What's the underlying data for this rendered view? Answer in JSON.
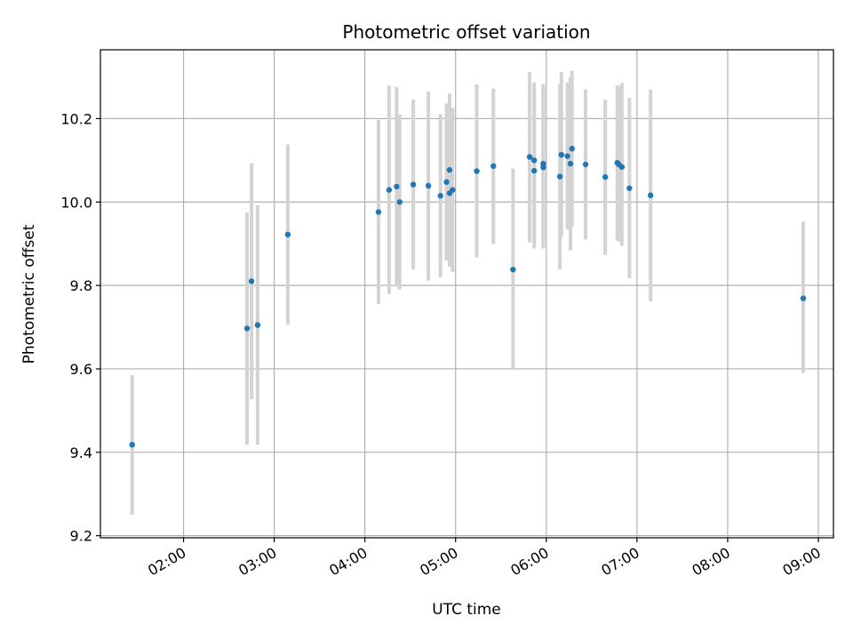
{
  "chart_data": {
    "type": "scatter",
    "title": "Photometric offset variation",
    "xlabel": "UTC time",
    "ylabel": "Photometric offset",
    "x_unit": "UTC time (HH:MM)",
    "xlim": [
      "01:05",
      "09:10"
    ],
    "ylim": [
      9.195,
      10.365
    ],
    "x_ticks": [
      "02:00",
      "03:00",
      "04:00",
      "05:00",
      "06:00",
      "07:00",
      "08:00",
      "09:00"
    ],
    "y_ticks": [
      "9.2",
      "9.4",
      "9.6",
      "9.8",
      "10.0",
      "10.2"
    ],
    "grid": true,
    "point_color": "#1f77b4",
    "errorbar_color": "#d3d3d3",
    "series": [
      {
        "points": [
          {
            "x": "01:26",
            "y": 9.418,
            "lo": 9.25,
            "hi": 9.585
          },
          {
            "x": "02:42",
            "y": 9.697,
            "lo": 9.418,
            "hi": 9.975
          },
          {
            "x": "02:45",
            "y": 9.81,
            "lo": 9.527,
            "hi": 10.093
          },
          {
            "x": "02:49",
            "y": 9.705,
            "lo": 9.418,
            "hi": 9.992
          },
          {
            "x": "03:09",
            "y": 9.922,
            "lo": 9.706,
            "hi": 10.138
          },
          {
            "x": "04:09",
            "y": 9.976,
            "lo": 9.756,
            "hi": 10.197
          },
          {
            "x": "04:16",
            "y": 10.029,
            "lo": 9.779,
            "hi": 10.279
          },
          {
            "x": "04:21",
            "y": 10.037,
            "lo": 9.797,
            "hi": 10.276
          },
          {
            "x": "04:23",
            "y": 10.0,
            "lo": 9.79,
            "hi": 10.21
          },
          {
            "x": "04:32",
            "y": 10.042,
            "lo": 9.838,
            "hi": 10.246
          },
          {
            "x": "04:42",
            "y": 10.039,
            "lo": 9.812,
            "hi": 10.265
          },
          {
            "x": "04:50",
            "y": 10.015,
            "lo": 9.82,
            "hi": 10.211
          },
          {
            "x": "04:54",
            "y": 10.048,
            "lo": 9.86,
            "hi": 10.236
          },
          {
            "x": "04:56",
            "y": 10.077,
            "lo": 9.86,
            "hi": 10.26
          },
          {
            "x": "04:56",
            "y": 10.021,
            "lo": 9.845,
            "hi": 10.197
          },
          {
            "x": "04:58",
            "y": 10.029,
            "lo": 9.832,
            "hi": 10.226
          },
          {
            "x": "05:14",
            "y": 10.074,
            "lo": 9.867,
            "hi": 10.282
          },
          {
            "x": "05:25",
            "y": 10.086,
            "lo": 9.9,
            "hi": 10.272
          },
          {
            "x": "05:38",
            "y": 9.838,
            "lo": 9.597,
            "hi": 10.08
          },
          {
            "x": "05:49",
            "y": 10.108,
            "lo": 9.903,
            "hi": 10.312
          },
          {
            "x": "05:52",
            "y": 10.1,
            "lo": 9.889,
            "hi": 10.287
          },
          {
            "x": "05:52",
            "y": 10.075,
            "lo": 9.889,
            "hi": 10.264
          },
          {
            "x": "05:58",
            "y": 10.092,
            "lo": 9.893,
            "hi": 10.283
          },
          {
            "x": "05:58",
            "y": 10.083,
            "lo": 9.889,
            "hi": 10.279
          },
          {
            "x": "06:09",
            "y": 10.061,
            "lo": 9.838,
            "hi": 10.283
          },
          {
            "x": "06:10",
            "y": 10.113,
            "lo": 9.917,
            "hi": 10.312
          },
          {
            "x": "06:14",
            "y": 10.11,
            "lo": 9.934,
            "hi": 10.287
          },
          {
            "x": "06:16",
            "y": 10.092,
            "lo": 9.884,
            "hi": 10.3
          },
          {
            "x": "06:17",
            "y": 10.128,
            "lo": 9.94,
            "hi": 10.315
          },
          {
            "x": "06:26",
            "y": 10.09,
            "lo": 9.91,
            "hi": 10.27
          },
          {
            "x": "06:39",
            "y": 10.06,
            "lo": 9.873,
            "hi": 10.245
          },
          {
            "x": "06:47",
            "y": 10.094,
            "lo": 9.908,
            "hi": 10.28
          },
          {
            "x": "06:48",
            "y": 10.09,
            "lo": 9.905,
            "hi": 10.276
          },
          {
            "x": "06:50",
            "y": 10.084,
            "lo": 9.895,
            "hi": 10.285
          },
          {
            "x": "06:55",
            "y": 10.033,
            "lo": 9.817,
            "hi": 10.25
          },
          {
            "x": "07:09",
            "y": 10.016,
            "lo": 9.762,
            "hi": 10.27
          },
          {
            "x": "08:50",
            "y": 9.769,
            "lo": 9.59,
            "hi": 9.953
          }
        ]
      }
    ]
  }
}
